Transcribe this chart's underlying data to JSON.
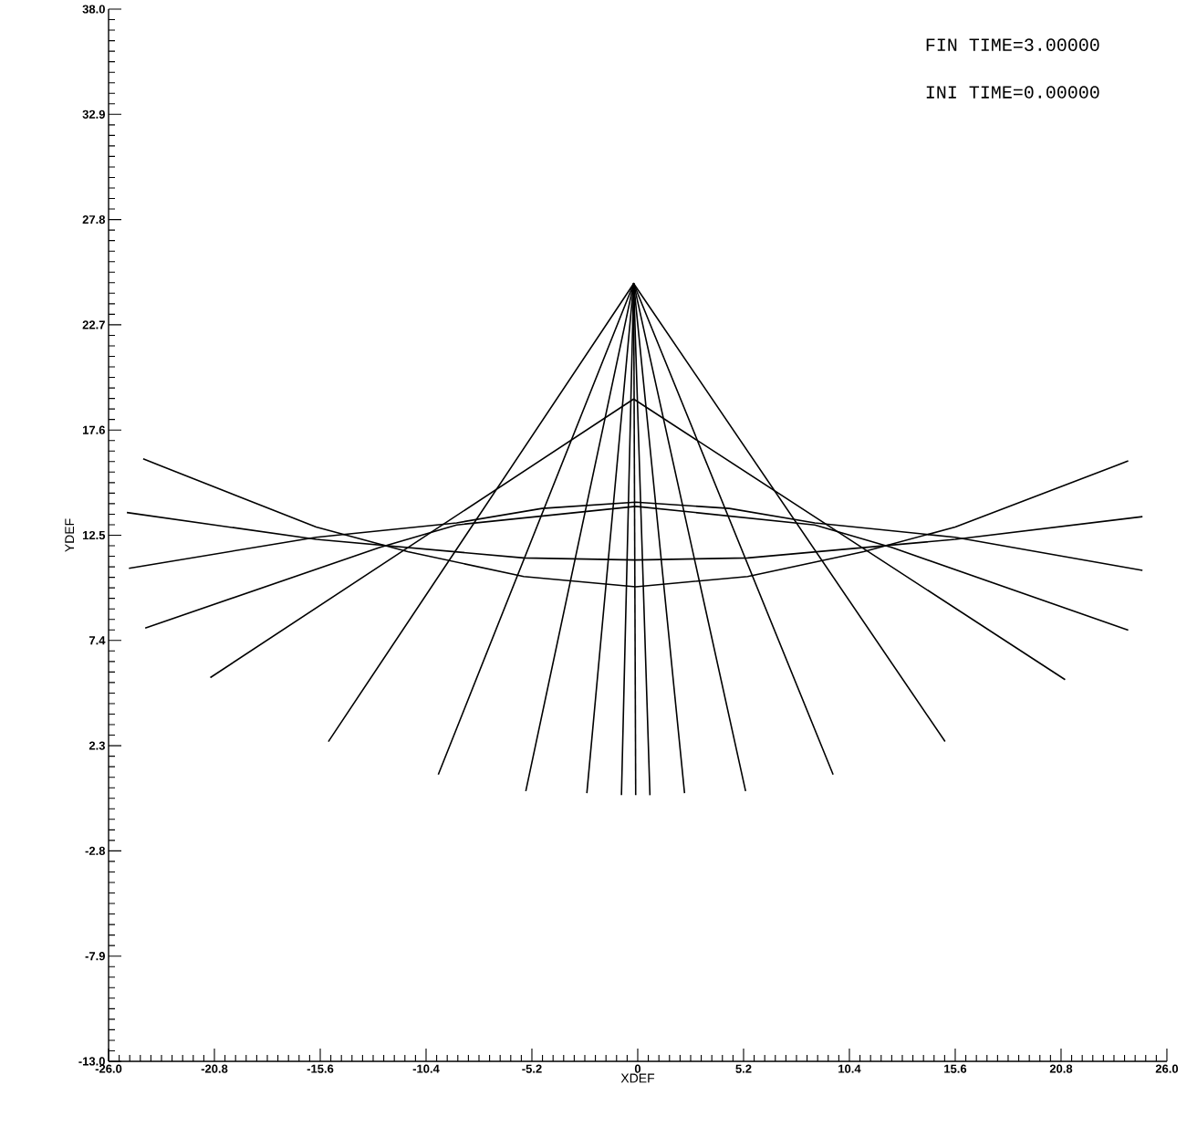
{
  "chart_data": {
    "type": "line",
    "xlabel": "XDEF",
    "ylabel": "YDEF",
    "annotations": [
      "FIN TIME=3.00000",
      "INI TIME=0.00000"
    ],
    "xlim": [
      -26,
      26
    ],
    "ylim": [
      -13,
      38
    ],
    "xticks": [
      {
        "value": -26,
        "label": "-26.0"
      },
      -20.8,
      -15.6,
      -10.4,
      -5.2,
      0,
      5.2,
      10.4,
      15.6,
      20.8,
      {
        "value": 26,
        "label": "26.0"
      }
    ],
    "yticks": [
      {
        "value": -13,
        "label": "-13.0"
      },
      -7.9,
      -2.8,
      2.3,
      7.4,
      12.5,
      17.6,
      22.7,
      27.8,
      32.9,
      {
        "value": 38,
        "label": "38.0"
      }
    ],
    "grid": false,
    "marker": "none",
    "line_style": "solid",
    "series": [
      {
        "color": "#000000",
        "x": [
          -24.3,
          -15.8,
          -11.3,
          -5.6,
          -0.1,
          5.4,
          11.1,
          15.6,
          24.1
        ],
        "values": [
          16.2,
          12.9,
          11.7,
          10.5,
          10.0,
          10.5,
          11.7,
          12.9,
          16.1
        ]
      },
      {
        "color": "#000000",
        "x": [
          -25.1,
          -15.8,
          -5.6,
          -0.1,
          5.4,
          15.6,
          24.8
        ],
        "values": [
          13.6,
          12.3,
          11.4,
          11.3,
          11.4,
          12.3,
          13.4
        ]
      },
      {
        "color": "#000000",
        "x": [
          -25.0,
          -15.8,
          -8.9,
          -4.7,
          -0.1,
          4.5,
          8.7,
          15.6,
          24.8
        ],
        "values": [
          10.9,
          12.4,
          13.1,
          13.8,
          14.1,
          13.8,
          13.1,
          12.4,
          10.8
        ]
      },
      {
        "color": "#000000",
        "x": [
          -24.2,
          -12.7,
          -8.9,
          -0.1,
          8.7,
          12.5,
          24.1
        ],
        "values": [
          8.0,
          11.9,
          13.0,
          13.9,
          13.0,
          11.9,
          7.9
        ]
      },
      {
        "color": "#000000",
        "x": [
          -21.0,
          -0.2,
          21.0
        ],
        "values": [
          5.6,
          19.1,
          5.5
        ]
      },
      {
        "color": "#000000",
        "x": [
          -15.2,
          -0.2,
          15.1
        ],
        "values": [
          2.5,
          24.7,
          2.5
        ]
      },
      {
        "color": "#000000",
        "x": [
          -9.8,
          -0.2,
          9.6
        ],
        "values": [
          0.9,
          24.7,
          0.9
        ]
      },
      {
        "color": "#000000",
        "x": [
          -5.5,
          -0.2,
          5.3
        ],
        "values": [
          0.1,
          24.7,
          0.1
        ]
      },
      {
        "color": "#000000",
        "x": [
          -2.5,
          -0.2,
          2.3
        ],
        "values": [
          0.0,
          24.7,
          0.0
        ]
      },
      {
        "color": "#000000",
        "x": [
          -0.8,
          -0.2,
          0.6
        ],
        "values": [
          -0.1,
          24.7,
          -0.1
        ]
      },
      {
        "color": "#000000",
        "x": [
          -0.1,
          -0.2
        ],
        "values": [
          -0.1,
          24.7
        ]
      }
    ]
  }
}
